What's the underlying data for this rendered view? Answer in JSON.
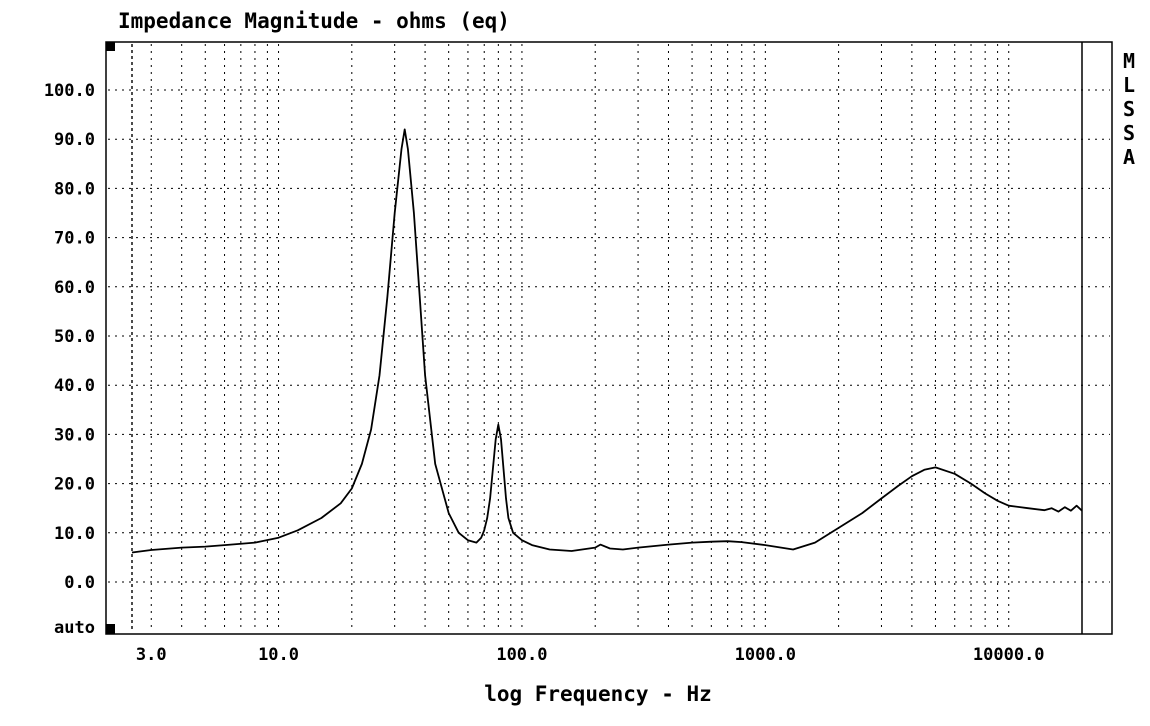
{
  "chart_data": {
    "type": "line",
    "title": "Impedance Magnitude - ohms (eq)",
    "xlabel": "log Frequency - Hz",
    "ylabel": "",
    "x_scale": "log",
    "xlim": [
      2,
      25000
    ],
    "ylim": [
      -10,
      110
    ],
    "grid": true,
    "side_label": "MLSSA",
    "y_ticks": [
      {
        "label": "100.0",
        "value": 100
      },
      {
        "label": "90.0",
        "value": 90
      },
      {
        "label": "80.0",
        "value": 80
      },
      {
        "label": "70.0",
        "value": 70
      },
      {
        "label": "60.0",
        "value": 60
      },
      {
        "label": "50.0",
        "value": 50
      },
      {
        "label": "40.0",
        "value": 40
      },
      {
        "label": "30.0",
        "value": 30
      },
      {
        "label": "20.0",
        "value": 20
      },
      {
        "label": "10.0",
        "value": 10
      },
      {
        "label": "0.0",
        "value": 0
      },
      {
        "label": "auto",
        "value": -10
      }
    ],
    "x_ticks": [
      {
        "label": "3.0",
        "value": 3
      },
      {
        "label": "10.0",
        "value": 10
      },
      {
        "label": "100.0",
        "value": 100
      },
      {
        "label": "1000.0",
        "value": 1000
      },
      {
        "label": "10000.0",
        "value": 10000
      }
    ],
    "x_grid_values": [
      2.5,
      3,
      4,
      5,
      6,
      7,
      8,
      9,
      10,
      20,
      30,
      40,
      50,
      60,
      70,
      80,
      90,
      100,
      200,
      300,
      400,
      500,
      600,
      700,
      800,
      900,
      1000,
      2000,
      3000,
      4000,
      5000,
      6000,
      7000,
      8000,
      9000,
      10000,
      20000
    ],
    "series": [
      {
        "x": [
          2.5,
          3,
          4,
          5,
          6,
          8,
          10,
          12,
          15,
          18,
          20,
          22,
          24,
          26,
          28,
          30,
          32,
          33,
          34,
          36,
          38,
          40,
          44,
          50,
          55,
          60,
          65,
          68,
          70,
          72,
          74,
          76,
          78,
          80,
          82,
          84,
          86,
          88,
          92,
          100,
          110,
          130,
          160,
          200,
          210,
          230,
          260,
          300,
          400,
          500,
          600,
          700,
          800,
          1000,
          1300,
          1600,
          2000,
          2500,
          3000,
          3500,
          4000,
          4500,
          5000,
          6000,
          7000,
          8000,
          9000,
          10000,
          12000,
          14000,
          15000,
          16000,
          17000,
          18000,
          19000,
          20000
        ],
        "y": [
          6,
          6.5,
          7,
          7.2,
          7.5,
          8,
          9,
          10.5,
          13,
          16,
          19,
          24,
          31,
          42,
          58,
          75,
          88,
          92,
          88,
          75,
          58,
          42,
          24,
          14,
          10,
          8.5,
          8,
          9,
          10.5,
          13,
          17,
          23,
          29,
          32,
          29,
          23,
          17,
          13,
          10,
          8.5,
          7.5,
          6.6,
          6.3,
          7,
          7.6,
          6.8,
          6.6,
          7,
          7.6,
          8,
          8.2,
          8.3,
          8.1,
          7.5,
          6.6,
          8,
          11,
          14,
          17,
          19.5,
          21.5,
          22.8,
          23.3,
          22,
          20,
          18,
          16.5,
          15.5,
          15,
          14.6,
          15,
          14.3,
          15.2,
          14.5,
          15.5,
          14.5
        ]
      }
    ]
  }
}
